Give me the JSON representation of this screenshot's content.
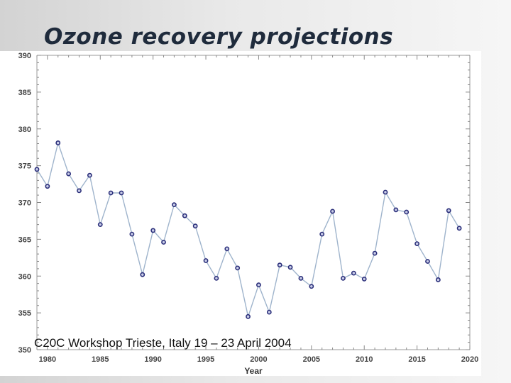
{
  "slide": {
    "title": "Ozone recovery projections",
    "footer": "C20C Workshop Trieste, Italy 19 – 23 April 2004"
  },
  "chart_data": {
    "type": "line",
    "title": "",
    "xlabel": "Year",
    "ylabel": "",
    "xlim": [
      1979,
      2020
    ],
    "ylim": [
      350,
      390
    ],
    "xticks": [
      1980,
      1985,
      1990,
      1995,
      2000,
      2005,
      2010,
      2015,
      2020
    ],
    "yticks": [
      350,
      355,
      360,
      365,
      370,
      375,
      380,
      385,
      390
    ],
    "grid": false,
    "line_color": "#9fb4cc",
    "marker_color": "#2b2f7a",
    "x": [
      1979,
      1980,
      1981,
      1982,
      1983,
      1984,
      1985,
      1986,
      1987,
      1988,
      1989,
      1990,
      1991,
      1992,
      1993,
      1994,
      1995,
      1996,
      1997,
      1998,
      1999,
      2000,
      2001,
      2002,
      2003,
      2004,
      2005,
      2006,
      2007,
      2008,
      2009,
      2010,
      2011,
      2012,
      2013,
      2014,
      2015,
      2016,
      2017,
      2018,
      2019
    ],
    "series": [
      {
        "values": [
          374.5,
          372.2,
          378.1,
          373.9,
          371.6,
          373.7,
          367.0,
          371.3,
          371.3,
          365.7,
          360.2,
          366.2,
          364.6,
          369.7,
          368.2,
          366.8,
          362.1,
          359.7,
          363.7,
          361.1,
          354.5,
          358.8,
          355.1,
          361.5,
          361.2,
          359.7,
          358.6,
          365.7,
          368.8,
          359.7,
          360.4,
          359.6,
          363.1,
          371.4,
          369.0,
          368.7,
          364.4,
          362.0,
          359.5,
          368.9,
          366.5
        ]
      }
    ]
  }
}
